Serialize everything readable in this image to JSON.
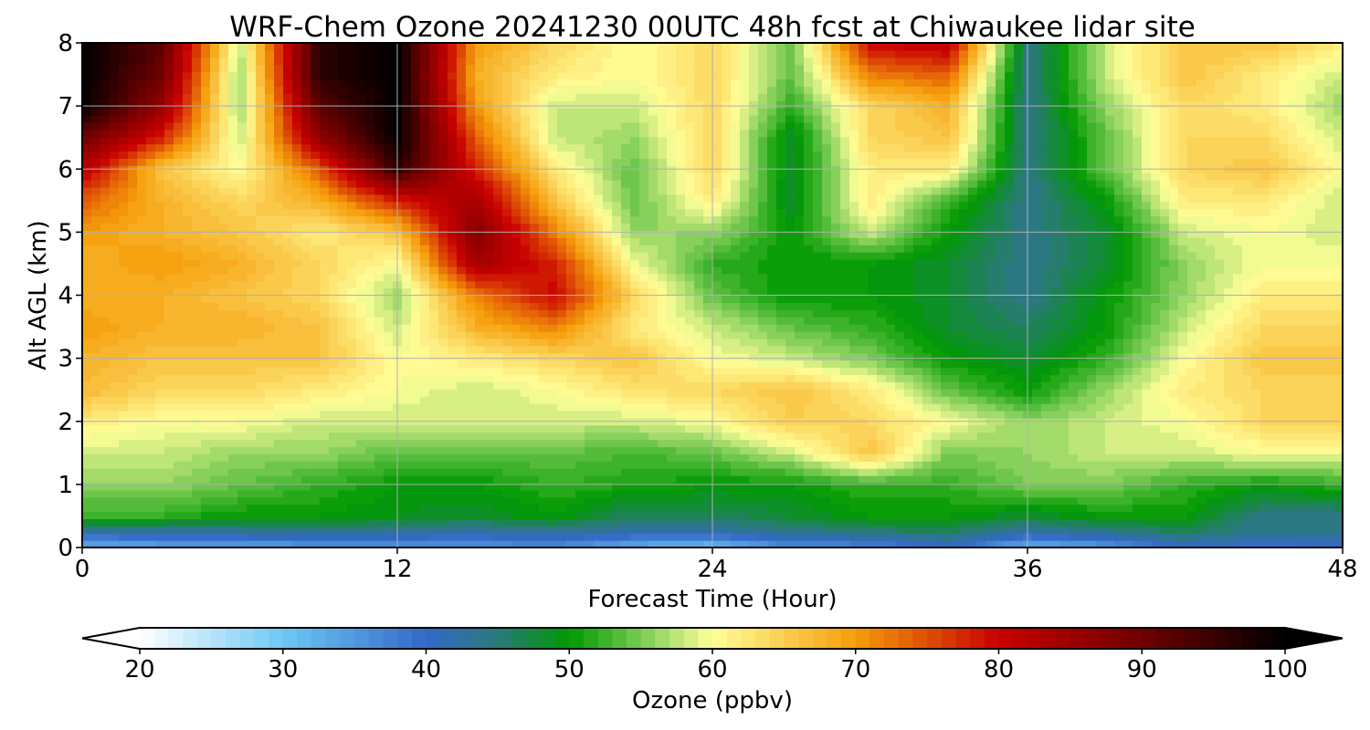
{
  "chart_data": {
    "type": "heatmap",
    "title": "WRF-Chem Ozone  20241230 00UTC 48h fcst at Chiwaukee lidar site",
    "xlabel": "Forecast Time (Hour)",
    "ylabel": "Alt AGL (km)",
    "xlim": [
      0,
      48
    ],
    "ylim": [
      0,
      8
    ],
    "x_ticks": [
      0,
      12,
      24,
      36,
      48
    ],
    "y_ticks": [
      0,
      1,
      2,
      3,
      4,
      5,
      6,
      7,
      8
    ],
    "grid": true,
    "x_hours": [
      0,
      3,
      6,
      9,
      12,
      15,
      18,
      21,
      24,
      27,
      30,
      33,
      36,
      39,
      42,
      45,
      48
    ],
    "y_km": [
      0,
      0.25,
      0.5,
      1,
      1.5,
      2,
      2.5,
      3,
      3.5,
      4,
      4.5,
      5,
      5.5,
      6,
      6.5,
      7,
      7.5,
      8
    ],
    "z_ozone_ppbv": [
      [
        32,
        33,
        33,
        34,
        34,
        35,
        36,
        32,
        30,
        36,
        36,
        40,
        32,
        34,
        40,
        38,
        40
      ],
      [
        42,
        42,
        43,
        44,
        43,
        42,
        43,
        42,
        42,
        44,
        45,
        46,
        42,
        44,
        46,
        44,
        44
      ],
      [
        52,
        52,
        50,
        50,
        49,
        48,
        50,
        46,
        46,
        48,
        50,
        50,
        48,
        50,
        50,
        44,
        44
      ],
      [
        56,
        56,
        54,
        52,
        50,
        50,
        52,
        51,
        50,
        50,
        52,
        52,
        55,
        55,
        52,
        50,
        52
      ],
      [
        58,
        58,
        56,
        56,
        54,
        54,
        54,
        53,
        54,
        58,
        66,
        55,
        56,
        58,
        58,
        60,
        60
      ],
      [
        62,
        60,
        60,
        58,
        58,
        58,
        58,
        58,
        60,
        65,
        64,
        60,
        56,
        58,
        60,
        64,
        64
      ],
      [
        67,
        64,
        64,
        62,
        60,
        58,
        60,
        63,
        64,
        66,
        62,
        54,
        50,
        56,
        62,
        64,
        64
      ],
      [
        68,
        66,
        66,
        66,
        60,
        62,
        64,
        66,
        60,
        58,
        55,
        50,
        48,
        52,
        60,
        66,
        66
      ],
      [
        70,
        68,
        68,
        66,
        58,
        68,
        72,
        62,
        58,
        54,
        52,
        48,
        46,
        50,
        58,
        64,
        64
      ],
      [
        68,
        68,
        66,
        64,
        56,
        72,
        80,
        64,
        54,
        50,
        50,
        48,
        44,
        50,
        56,
        62,
        62
      ],
      [
        68,
        70,
        68,
        64,
        60,
        84,
        78,
        60,
        52,
        50,
        50,
        48,
        44,
        48,
        56,
        60,
        60
      ],
      [
        70,
        68,
        66,
        62,
        66,
        88,
        72,
        56,
        56,
        50,
        58,
        50,
        44,
        48,
        58,
        60,
        58
      ],
      [
        74,
        68,
        64,
        68,
        78,
        84,
        66,
        54,
        62,
        48,
        62,
        52,
        44,
        50,
        62,
        62,
        58
      ],
      [
        82,
        66,
        60,
        74,
        96,
        78,
        62,
        54,
        64,
        48,
        62,
        62,
        44,
        54,
        64,
        66,
        60
      ],
      [
        90,
        78,
        58,
        86,
        100,
        74,
        58,
        56,
        64,
        48,
        64,
        66,
        44,
        54,
        64,
        64,
        58
      ],
      [
        100,
        86,
        56,
        92,
        100,
        70,
        58,
        58,
        64,
        52,
        64,
        68,
        44,
        56,
        64,
        62,
        56
      ],
      [
        100,
        90,
        56,
        96,
        100,
        68,
        62,
        60,
        64,
        54,
        72,
        74,
        44,
        58,
        66,
        62,
        58
      ],
      [
        100,
        92,
        58,
        96,
        100,
        70,
        64,
        60,
        64,
        54,
        80,
        82,
        44,
        58,
        66,
        66,
        62
      ]
    ],
    "colorbar": {
      "label": "Ozone  (ppbv)",
      "min": 20,
      "max": 100,
      "step": 1,
      "ticks": [
        20,
        30,
        40,
        50,
        60,
        70,
        80,
        90,
        100
      ],
      "extend": "both",
      "stops": [
        {
          "v": 20,
          "c": "#ffffff"
        },
        {
          "v": 30,
          "c": "#6ec8f5"
        },
        {
          "v": 40,
          "c": "#3368c8"
        },
        {
          "v": 45,
          "c": "#2a7a7a"
        },
        {
          "v": 50,
          "c": "#009900"
        },
        {
          "v": 55,
          "c": "#7acb55"
        },
        {
          "v": 60,
          "c": "#ffff99"
        },
        {
          "v": 70,
          "c": "#f59d0a"
        },
        {
          "v": 80,
          "c": "#c80000"
        },
        {
          "v": 90,
          "c": "#700000"
        },
        {
          "v": 100,
          "c": "#000000"
        }
      ]
    }
  }
}
